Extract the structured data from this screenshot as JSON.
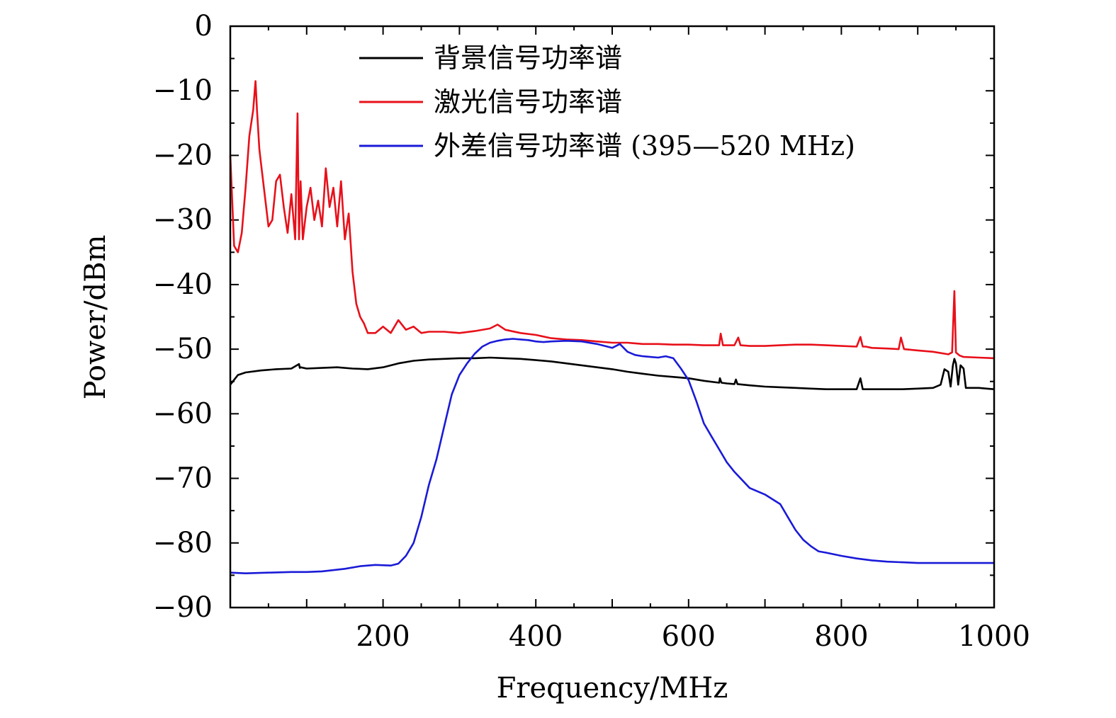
{
  "chart_data": {
    "type": "line",
    "title": "",
    "xlabel": "Frequency/MHz",
    "ylabel": "Power/dBm",
    "xlim": [
      0,
      1000
    ],
    "ylim": [
      -90,
      0
    ],
    "xticks": [
      200,
      400,
      600,
      800,
      1000
    ],
    "xtick_labels": [
      "200",
      "400",
      "600",
      "800",
      "1000"
    ],
    "yticks": [
      0,
      -10,
      -20,
      -30,
      -40,
      -50,
      -60,
      -70,
      -80,
      -90
    ],
    "ytick_labels": [
      "0",
      "−10",
      "−20",
      "−30",
      "−40",
      "−50",
      "−60",
      "−70",
      "−80",
      "−90"
    ],
    "grid": false,
    "legend_position": "top-center",
    "series": [
      {
        "name": "背景信号功率谱",
        "color": "#000000",
        "x": [
          0,
          10,
          20,
          40,
          60,
          80,
          90,
          91,
          92,
          100,
          120,
          140,
          160,
          180,
          200,
          220,
          240,
          260,
          280,
          300,
          320,
          340,
          360,
          380,
          400,
          420,
          440,
          460,
          480,
          500,
          520,
          540,
          560,
          580,
          600,
          620,
          640,
          641,
          643,
          650,
          660,
          662,
          664,
          680,
          700,
          720,
          740,
          760,
          780,
          800,
          820,
          825,
          828,
          832,
          840,
          860,
          880,
          900,
          920,
          930,
          935,
          940,
          943,
          946,
          948,
          950,
          953,
          956,
          960,
          963,
          980,
          1000
        ],
        "y": [
          -55.5,
          -54,
          -53.6,
          -53.3,
          -53.1,
          -53,
          -52.3,
          -52.9,
          -52.8,
          -53,
          -52.9,
          -52.8,
          -53,
          -53.1,
          -52.8,
          -52.2,
          -51.8,
          -51.6,
          -51.5,
          -51.4,
          -51.4,
          -51.3,
          -51.4,
          -51.5,
          -51.7,
          -51.9,
          -52.2,
          -52.5,
          -52.8,
          -53.1,
          -53.5,
          -53.8,
          -54.1,
          -54.3,
          -54.5,
          -54.9,
          -55.2,
          -54.5,
          -55.2,
          -55.3,
          -55.4,
          -54.7,
          -55.4,
          -55.6,
          -55.8,
          -55.9,
          -56,
          -56.1,
          -56.2,
          -56.2,
          -56.2,
          -54.5,
          -56.2,
          -56.2,
          -56.2,
          -56.2,
          -56.2,
          -56.1,
          -56,
          -55.5,
          -53.1,
          -53.5,
          -55.8,
          -52.5,
          -51.5,
          -52.2,
          -55.5,
          -52.5,
          -53,
          -56,
          -56,
          -56.2
        ]
      },
      {
        "name": "激光信号功率谱",
        "color": "#e8101a",
        "x": [
          0,
          5,
          10,
          15,
          20,
          25,
          30,
          33,
          35,
          38,
          40,
          45,
          50,
          55,
          60,
          65,
          70,
          75,
          80,
          85,
          88,
          90,
          92,
          95,
          100,
          105,
          110,
          115,
          120,
          125,
          130,
          135,
          140,
          145,
          150,
          155,
          160,
          165,
          170,
          175,
          180,
          190,
          200,
          210,
          220,
          230,
          240,
          250,
          260,
          280,
          300,
          320,
          340,
          350,
          360,
          380,
          400,
          420,
          440,
          460,
          480,
          500,
          520,
          540,
          560,
          580,
          600,
          620,
          640,
          642,
          645,
          660,
          665,
          668,
          680,
          700,
          720,
          740,
          760,
          780,
          800,
          820,
          825,
          828,
          832,
          840,
          860,
          875,
          878,
          882,
          900,
          920,
          940,
          945,
          948,
          950,
          955,
          960,
          980,
          1000
        ],
        "y": [
          -20,
          -34,
          -35,
          -32,
          -25,
          -17,
          -13,
          -8.5,
          -13,
          -19,
          -21,
          -26,
          -31,
          -30,
          -24,
          -23,
          -28,
          -32,
          -26,
          -33,
          -13.5,
          -33,
          -24,
          -33,
          -28,
          -25,
          -30,
          -27,
          -31,
          -22,
          -28,
          -25,
          -31,
          -24,
          -33,
          -29,
          -38,
          -43,
          -45,
          -46,
          -47.5,
          -47.5,
          -46.5,
          -47.5,
          -45.5,
          -47,
          -46.5,
          -47.5,
          -47.3,
          -47.3,
          -47.5,
          -47.2,
          -46.8,
          -46.2,
          -47,
          -47.5,
          -47.8,
          -48.3,
          -48.5,
          -48.6,
          -48.8,
          -49,
          -49,
          -49.2,
          -49.2,
          -49.3,
          -49.3,
          -49.4,
          -49.4,
          -47.6,
          -49.4,
          -49.4,
          -48.2,
          -49.4,
          -49.5,
          -49.5,
          -49.4,
          -49.3,
          -49.3,
          -49.4,
          -49.5,
          -49.6,
          -48.1,
          -49.6,
          -49.6,
          -49.8,
          -49.9,
          -50,
          -48.2,
          -50,
          -50.2,
          -50.4,
          -50.8,
          -50.5,
          -41,
          -50.5,
          -51,
          -51.2,
          -51.3,
          -51.4
        ]
      },
      {
        "name": "外差信号功率谱 (395—520 MHz)",
        "color": "#1a1ad8",
        "x": [
          0,
          20,
          50,
          80,
          100,
          120,
          150,
          170,
          190,
          210,
          220,
          230,
          240,
          250,
          260,
          270,
          280,
          290,
          300,
          310,
          320,
          330,
          340,
          350,
          360,
          370,
          380,
          390,
          400,
          410,
          420,
          440,
          460,
          480,
          500,
          510,
          520,
          530,
          540,
          550,
          560,
          570,
          580,
          590,
          600,
          610,
          620,
          630,
          640,
          650,
          660,
          680,
          700,
          720,
          730,
          740,
          750,
          760,
          770,
          780,
          800,
          820,
          840,
          860,
          880,
          900,
          920,
          940,
          960,
          980,
          1000
        ],
        "y": [
          -84.6,
          -84.7,
          -84.6,
          -84.5,
          -84.5,
          -84.4,
          -84,
          -83.6,
          -83.4,
          -83.5,
          -83.2,
          -82,
          -80,
          -76,
          -71,
          -67,
          -62,
          -57,
          -54,
          -52.2,
          -50.7,
          -49.6,
          -49,
          -48.7,
          -48.5,
          -48.4,
          -48.5,
          -48.6,
          -48.8,
          -48.9,
          -48.8,
          -48.7,
          -48.8,
          -49.2,
          -49.8,
          -49.2,
          -50.4,
          -50.9,
          -51.1,
          -51.2,
          -51.3,
          -51.1,
          -51.4,
          -53,
          -54.8,
          -58,
          -61.5,
          -63.5,
          -65.5,
          -67.5,
          -69,
          -71.5,
          -72.5,
          -74,
          -76,
          -78,
          -79.5,
          -80.5,
          -81.3,
          -81.5,
          -82,
          -82.4,
          -82.7,
          -82.9,
          -83,
          -83.1,
          -83.1,
          -83.1,
          -83.1,
          -83.1,
          -83.1
        ]
      }
    ]
  }
}
